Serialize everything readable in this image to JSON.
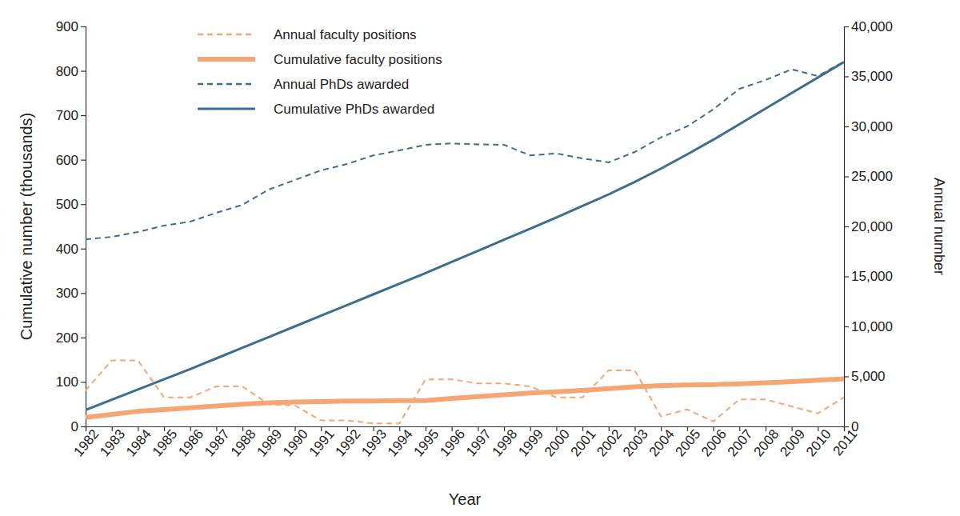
{
  "chart_data": {
    "type": "line",
    "x_label": "Year",
    "y_label": "Cumulative number (thousands)",
    "y2_label": "Annual number",
    "x": [
      1982,
      1983,
      1984,
      1985,
      1986,
      1987,
      1988,
      1989,
      1990,
      1991,
      1992,
      1993,
      1994,
      1995,
      1996,
      1997,
      1998,
      1999,
      2000,
      2001,
      2002,
      2003,
      2004,
      2005,
      2006,
      2007,
      2008,
      2009,
      2010,
      2011
    ],
    "xlim": [
      1982,
      2011
    ],
    "xticks": [
      1982,
      1983,
      1984,
      1985,
      1986,
      1987,
      1988,
      1989,
      1990,
      1991,
      1992,
      1993,
      1994,
      1995,
      1996,
      1997,
      1998,
      1999,
      2000,
      2001,
      2002,
      2003,
      2004,
      2005,
      2006,
      2007,
      2008,
      2009,
      2010,
      2011
    ],
    "ylim": [
      0,
      900
    ],
    "yticks": [
      0,
      100,
      200,
      300,
      400,
      500,
      600,
      700,
      800,
      900
    ],
    "y2lim": [
      0,
      40000
    ],
    "y2ticks": [
      0,
      {
        "value": 5000,
        "label": "5,000"
      },
      {
        "value": 10000,
        "label": "10,000"
      },
      {
        "value": 15000,
        "label": "15,000"
      },
      {
        "value": 20000,
        "label": "20,000"
      },
      {
        "value": 25000,
        "label": "25,000"
      },
      {
        "value": 30000,
        "label": "30,000"
      },
      {
        "value": 35000,
        "label": "35,000"
      },
      {
        "value": 40000,
        "label": "40,000"
      }
    ],
    "legend": "upper left",
    "grid": false,
    "series": [
      {
        "name": "Annual faculty positions",
        "color": "#f5a673",
        "line_style": "dashed",
        "axis": "y2",
        "values": [
          3600,
          6600,
          6600,
          2900,
          2900,
          4000,
          4000,
          2200,
          2100,
          600,
          600,
          300,
          300,
          4700,
          4700,
          4300,
          4300,
          4000,
          2900,
          2900,
          5600,
          5600,
          1000,
          1700,
          500,
          2700,
          2700,
          2000,
          1300,
          2900
        ]
      },
      {
        "name": "Cumulative faculty positions",
        "color": "#f5a673",
        "line_style": "solid",
        "values": [
          20,
          27,
          34,
          38,
          42,
          46,
          50,
          53,
          55,
          56,
          57,
          57,
          58,
          58,
          63,
          67,
          71,
          75,
          78,
          81,
          85,
          89,
          92,
          93,
          94,
          96,
          98,
          101,
          104,
          107
        ]
      },
      {
        "name": "Annual PhDs awarded",
        "color": "#3b6e8f",
        "line_style": "dashed",
        "axis": "y2",
        "values": [
          18700,
          18960,
          19440,
          20080,
          20480,
          21360,
          22160,
          23680,
          24640,
          25600,
          26240,
          27100,
          27600,
          28160,
          28300,
          28200,
          28160,
          27100,
          27300,
          26800,
          26400,
          27440,
          28900,
          30000,
          31700,
          33760,
          34640,
          35700,
          35040,
          36480
        ]
      },
      {
        "name": "Cumulative PhDs awarded",
        "color": "#3b6e8f",
        "line_style": "solid",
        "values": [
          37,
          60,
          83,
          106,
          129,
          153,
          177,
          201,
          225,
          249,
          273,
          297,
          321,
          345,
          370,
          395,
          420,
          445,
          470,
          496,
          522,
          550,
          580,
          612,
          645,
          680,
          715,
          750,
          785,
          820
        ]
      }
    ]
  }
}
